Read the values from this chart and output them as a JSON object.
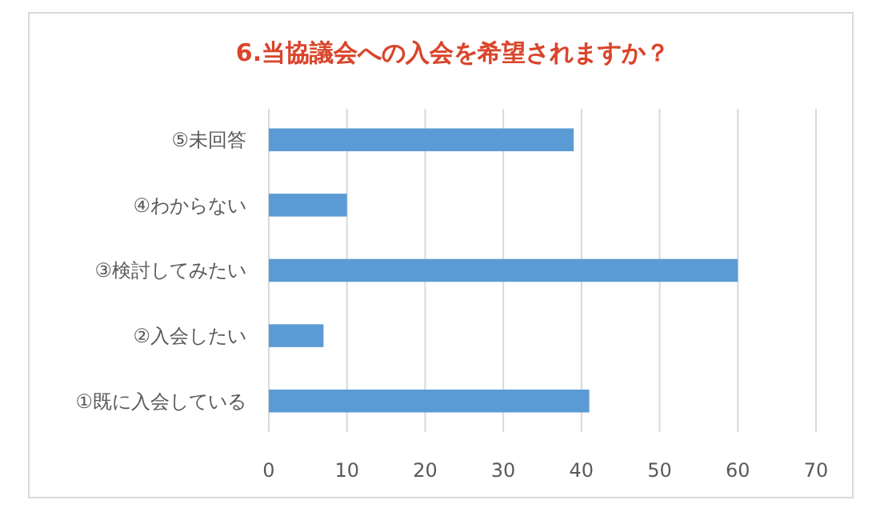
{
  "chart_data": {
    "type": "bar",
    "orientation": "horizontal",
    "title": "6.当協議会への入会を希望されますか？",
    "categories": [
      "⑤未回答",
      "④わからない",
      "③検討してみたい",
      "②入会したい",
      "①既に入会している"
    ],
    "values": [
      39,
      10,
      60,
      7,
      41
    ],
    "color": "#5b9bd5",
    "xlim": [
      0,
      70
    ],
    "xticks": [
      0,
      10,
      20,
      30,
      40,
      50,
      60,
      70
    ],
    "grid": "x"
  }
}
